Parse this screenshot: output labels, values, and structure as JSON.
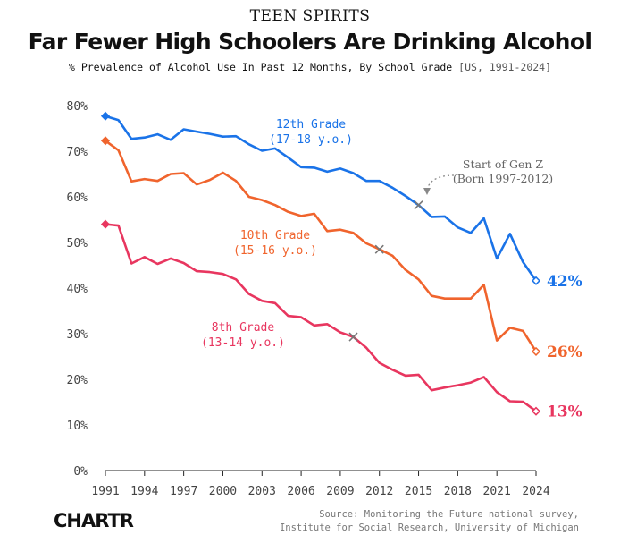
{
  "header": {
    "kicker": "TEEN SPIRITS",
    "title": "Far Fewer High Schoolers Are Drinking Alcohol",
    "subtitle_main": "% Prevalence of Alcohol Use In Past 12 Months, By School Grade",
    "subtitle_range": "[US, 1991-2024]"
  },
  "footer": {
    "brand": "CHARTR",
    "source_line1": "Source: Monitoring the Future national survey,",
    "source_line2": "Institute for Social Research, University of Michigan"
  },
  "chart_data": {
    "type": "line",
    "x_ticks": [
      1991,
      1994,
      1997,
      2000,
      2003,
      2006,
      2009,
      2012,
      2015,
      2018,
      2021,
      2024
    ],
    "y_ticks": [
      0,
      10,
      20,
      30,
      40,
      50,
      60,
      70,
      80
    ],
    "y_tick_labels": [
      "0%",
      "10%",
      "20%",
      "30%",
      "40%",
      "50%",
      "60%",
      "70%",
      "80%"
    ],
    "xlim": [
      1991,
      2024
    ],
    "ylim": [
      0,
      80
    ],
    "grid": false,
    "x": [
      1991,
      1992,
      1993,
      1994,
      1995,
      1996,
      1997,
      1998,
      1999,
      2000,
      2001,
      2002,
      2003,
      2004,
      2005,
      2006,
      2007,
      2008,
      2009,
      2010,
      2011,
      2012,
      2013,
      2014,
      2015,
      2016,
      2017,
      2018,
      2019,
      2020,
      2021,
      2022,
      2023,
      2024
    ],
    "series": [
      {
        "label_line1": "12th Grade",
        "label_line2": "(17-18 y.o.)",
        "end_label": "42%",
        "color": "#1a73e8",
        "values": [
          77.7,
          76.8,
          72.7,
          73.0,
          73.7,
          72.5,
          74.8,
          74.3,
          73.8,
          73.2,
          73.3,
          71.5,
          70.1,
          70.6,
          68.6,
          66.5,
          66.4,
          65.5,
          66.2,
          65.2,
          63.5,
          63.5,
          62.0,
          60.2,
          58.2,
          55.6,
          55.7,
          53.3,
          52.1,
          55.3,
          46.5,
          51.9,
          45.7,
          41.6
        ]
      },
      {
        "label_line1": "10th Grade",
        "label_line2": "(15-16 y.o.)",
        "end_label": "26%",
        "color": "#f0642d",
        "values": [
          72.3,
          70.2,
          63.4,
          63.9,
          63.5,
          65.0,
          65.2,
          62.7,
          63.7,
          65.3,
          63.5,
          60.0,
          59.3,
          58.2,
          56.7,
          55.8,
          56.3,
          52.5,
          52.8,
          52.1,
          49.8,
          48.5,
          47.1,
          44.0,
          41.9,
          38.3,
          37.7,
          37.7,
          37.7,
          40.7,
          28.5,
          31.3,
          30.6,
          26.1
        ]
      },
      {
        "label_line1": "8th Grade",
        "label_line2": "(13-14 y.o.)",
        "end_label": "13%",
        "color": "#e8365f",
        "values": [
          54.0,
          53.7,
          45.4,
          46.8,
          45.3,
          46.5,
          45.5,
          43.7,
          43.5,
          43.1,
          41.9,
          38.7,
          37.2,
          36.7,
          33.9,
          33.6,
          31.8,
          32.1,
          30.3,
          29.3,
          26.9,
          23.6,
          22.1,
          20.8,
          21.0,
          17.6,
          18.2,
          18.7,
          19.3,
          20.5,
          17.2,
          15.2,
          15.1,
          13.0
        ]
      }
    ],
    "annotation": {
      "line1": "Start of Gen Z",
      "line2": "(Born 1997-2012)",
      "x_markers": [
        {
          "grade": "12th Grade",
          "year": 2015,
          "value": 58.2
        },
        {
          "grade": "10th Grade",
          "year": 2012,
          "value": 48.5
        },
        {
          "grade": "8th Grade",
          "year": 2010,
          "value": 29.3
        }
      ]
    }
  }
}
